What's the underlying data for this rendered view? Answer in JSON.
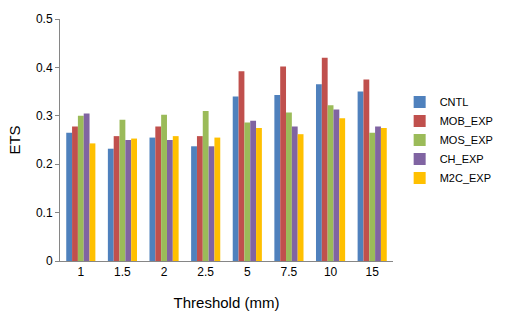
{
  "chart_data": {
    "type": "bar",
    "x_label": "Threshold (mm)",
    "y_label": "ETS",
    "categories": [
      "1",
      "1.5",
      "2",
      "2.5",
      "5",
      "7.5",
      "10",
      "15"
    ],
    "series": [
      {
        "name": "CNTL",
        "color": "#4f81bd",
        "values": [
          0.265,
          0.232,
          0.255,
          0.237,
          0.34,
          0.343,
          0.365,
          0.35
        ]
      },
      {
        "name": "MOB_EXP",
        "color": "#c0504d",
        "values": [
          0.278,
          0.258,
          0.278,
          0.258,
          0.392,
          0.402,
          0.42,
          0.375
        ]
      },
      {
        "name": "MOS_EXP",
        "color": "#9bbb59",
        "values": [
          0.3,
          0.292,
          0.302,
          0.31,
          0.286,
          0.307,
          0.322,
          0.265
        ]
      },
      {
        "name": "CH_EXP",
        "color": "#8064a2",
        "values": [
          0.305,
          0.25,
          0.25,
          0.237,
          0.29,
          0.278,
          0.313,
          0.278
        ]
      },
      {
        "name": "M2C_EXP",
        "color": "#ffc000",
        "values": [
          0.243,
          0.253,
          0.258,
          0.255,
          0.275,
          0.262,
          0.295,
          0.275
        ]
      }
    ],
    "ylim": [
      0,
      0.5
    ],
    "yticks": [
      0,
      0.1,
      0.2,
      0.3,
      0.4,
      0.5
    ],
    "grid": false,
    "legend": "right"
  }
}
